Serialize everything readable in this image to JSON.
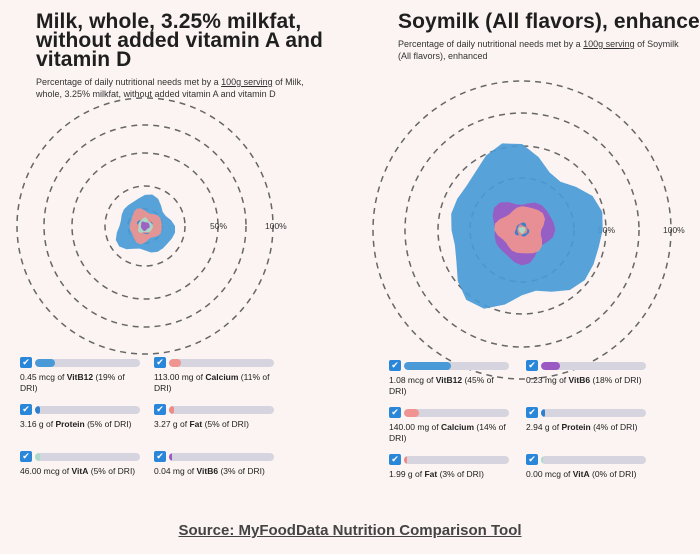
{
  "chart_data": [
    {
      "type": "radar",
      "title": "Milk, whole, 3.25% milkfat, without added vitamin A and vitamin D",
      "subtitle_pre": "Percentage of daily nutritional needs met by a ",
      "subtitle_link": "100g serving",
      "subtitle_post": " of Milk, whole, 3.25% milkfat, without added vitamin A and vitamin D",
      "ring_labels": [
        "50%",
        "100%"
      ],
      "series": [
        {
          "name": "VitB12",
          "amount": "0.45 mcg of",
          "dri": "(19% of DRI)",
          "percent": 19,
          "color": "#4a9ad8"
        },
        {
          "name": "Calcium",
          "amount": "113.00 mg of",
          "dri": "(11% of DRI)",
          "percent": 11,
          "color": "#ef9490"
        },
        {
          "name": "Protein",
          "amount": "3.16 g of",
          "dri": "(5% of DRI)",
          "percent": 5,
          "color": "#2d7fcf"
        },
        {
          "name": "Fat",
          "amount": "3.27 g of",
          "dri": "(5% of DRI)",
          "percent": 5,
          "color": "#ef8a87"
        },
        {
          "name": "VitA",
          "amount": "46.00 mcg of",
          "dri": "(5% of DRI)",
          "percent": 5,
          "color": "#a8dcc8"
        },
        {
          "name": "VitB6",
          "amount": "0.04 mg of",
          "dri": "(3% of DRI)",
          "percent": 3,
          "color": "#9b59c4"
        }
      ]
    },
    {
      "type": "radar",
      "title": "Soymilk (All flavors), enhanced",
      "subtitle_pre": "Percentage of daily nutritional needs met by a ",
      "subtitle_link": "100g serving",
      "subtitle_post": " of Soymilk (All flavors), enhanced",
      "ring_labels": [
        "50%",
        "100%"
      ],
      "series": [
        {
          "name": "VitB12",
          "amount": "1.08 mcg of",
          "dri": "(45% of DRI)",
          "percent": 45,
          "color": "#4a9ad8"
        },
        {
          "name": "VitB6",
          "amount": "0.23 mg of",
          "dri": "(18% of DRI)",
          "percent": 18,
          "color": "#9b59c4"
        },
        {
          "name": "Calcium",
          "amount": "140.00 mg of",
          "dri": "(14% of DRI)",
          "percent": 14,
          "color": "#ef9490"
        },
        {
          "name": "Protein",
          "amount": "2.94 g of",
          "dri": "(4% of DRI)",
          "percent": 4,
          "color": "#2d7fcf"
        },
        {
          "name": "Fat",
          "amount": "1.99 g of",
          "dri": "(3% of DRI)",
          "percent": 3,
          "color": "#ef8a87"
        },
        {
          "name": "VitA",
          "amount": "0.00 mcg of",
          "dri": "(0% of DRI)",
          "percent": 0,
          "color": "#a8dcc8"
        }
      ]
    }
  ],
  "ui": {
    "check_icon": "checkmark-icon",
    "checkbox_color": "#2a86d9",
    "track_color": "#d6d4de"
  },
  "footer": {
    "source": "Source: MyFoodData Nutrition Comparison Tool"
  }
}
